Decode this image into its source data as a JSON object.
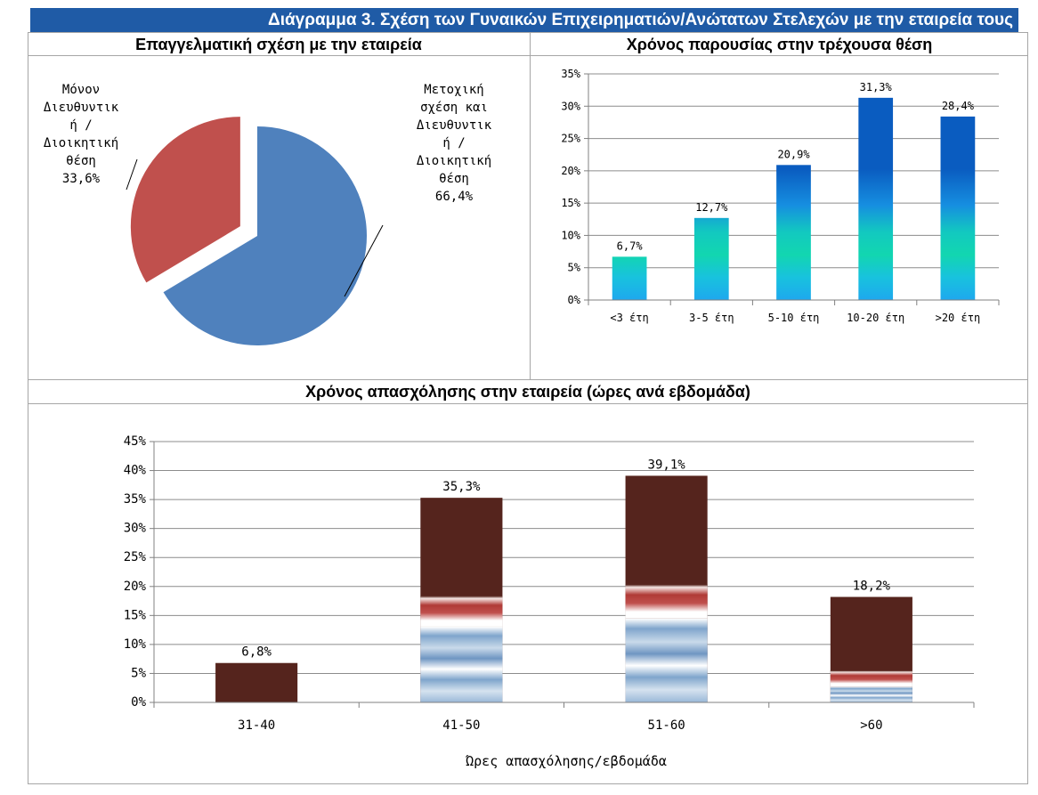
{
  "title": "Διάγραμμα 3. Σχέση των Γυναικών Επιχειρηματιών/Ανώτατων Στελεχών με την εταιρεία τους",
  "colors": {
    "title_bg": "#1f5ba6",
    "pie_blue": "#4f81bd",
    "pie_red": "#c0504d",
    "bar_blue": "#0a5cc0",
    "bar_cyan": "#12d6b0",
    "bar_brown": "#55241d",
    "bar_mid_red": "#c0504d",
    "bar_light_blue": "#7fa5cc"
  },
  "chart_data": [
    {
      "type": "pie",
      "title": "Επαγγελματική σχέση με την εταιρεία",
      "slices": [
        {
          "label_lines": [
            "Μετοχική",
            "σχέση και",
            "Διευθυντικ",
            "ή /",
            "Διοικητική",
            "θέση"
          ],
          "value": 66.4,
          "value_label": "66,4%",
          "color": "#4f81bd"
        },
        {
          "label_lines": [
            "Μόνον",
            "Διευθυντικ",
            "ή /",
            "Διοικητική",
            "θέση"
          ],
          "value": 33.6,
          "value_label": "33,6%",
          "color": "#c0504d",
          "exploded": true
        }
      ]
    },
    {
      "type": "bar",
      "title": "Χρόνος παρουσίας στην τρέχουσα θέση",
      "categories": [
        "<3 έτη",
        "3-5 έτη",
        "5-10 έτη",
        "10-20 έτη",
        ">20 έτη"
      ],
      "values": [
        6.7,
        12.7,
        20.9,
        31.3,
        28.4
      ],
      "value_labels": [
        "6,7%",
        "12,7%",
        "20,9%",
        "31,3%",
        "28,4%"
      ],
      "ylim": [
        0,
        35
      ],
      "yticks": [
        0,
        5,
        10,
        15,
        20,
        25,
        30,
        35
      ],
      "ytick_labels": [
        "0%",
        "5%",
        "10%",
        "15%",
        "20%",
        "25%",
        "30%",
        "35%"
      ],
      "xlabel": "",
      "grid": true
    },
    {
      "type": "bar",
      "title": "Χρόνος απασχόλησης στην εταιρεία (ώρες ανά εβδομάδα)",
      "categories": [
        "31-40",
        "41-50",
        "51-60",
        ">60"
      ],
      "values": [
        6.8,
        35.3,
        39.1,
        18.2
      ],
      "value_labels": [
        "6,8%",
        "35,3%",
        "39,1%",
        "18,2%"
      ],
      "ylim": [
        0,
        45
      ],
      "yticks": [
        0,
        5,
        10,
        15,
        20,
        25,
        30,
        35,
        40,
        45
      ],
      "ytick_labels": [
        "0%",
        "5%",
        "10%",
        "15%",
        "20%",
        "25%",
        "30%",
        "35%",
        "40%",
        "45%"
      ],
      "xlabel": "Ώρες απασχόλησης/εβδομάδα",
      "grid": true
    }
  ]
}
